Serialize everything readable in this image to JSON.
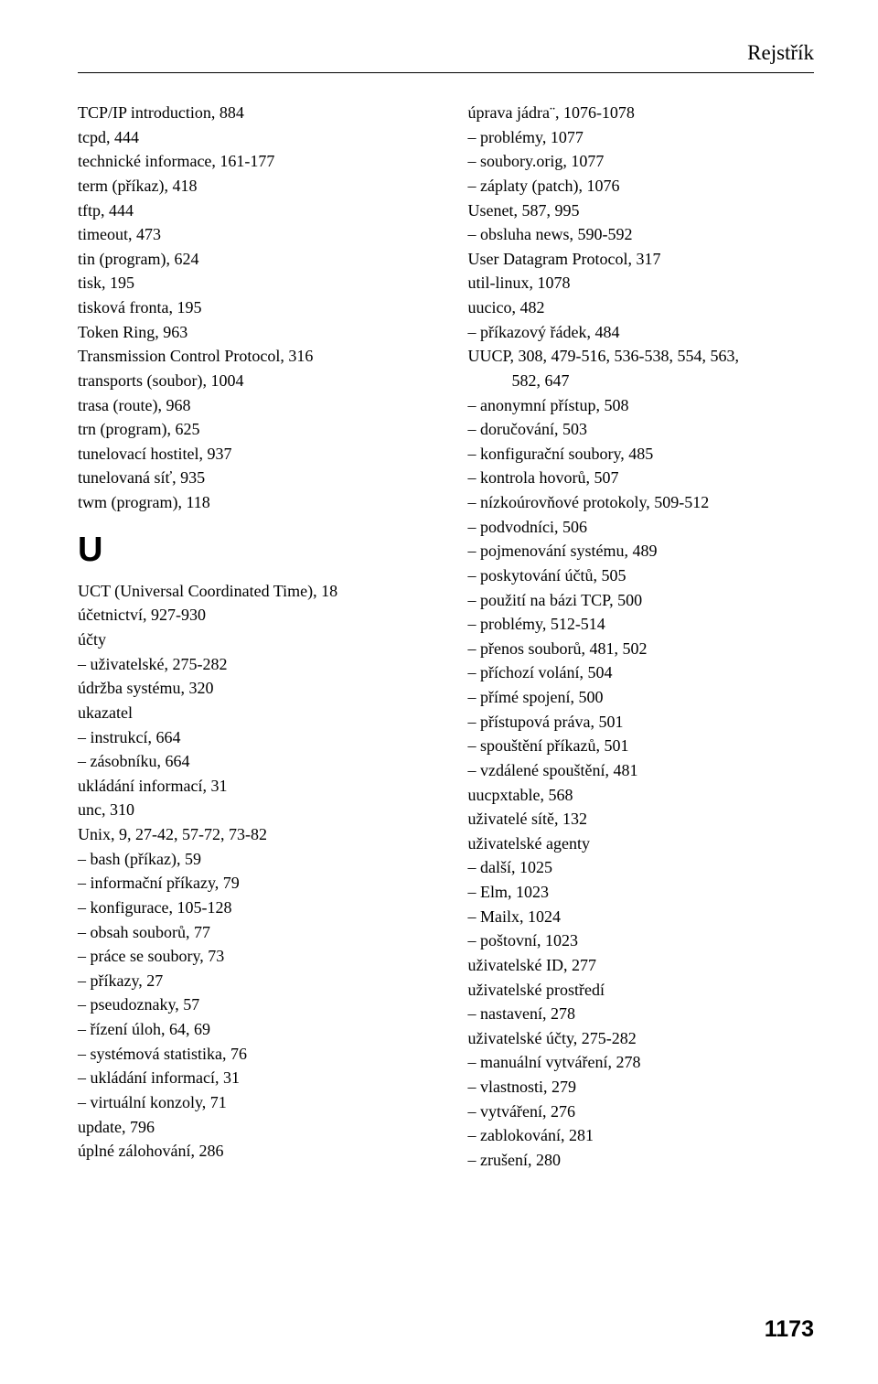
{
  "header": {
    "title": "Rejstřík"
  },
  "left": {
    "entries": [
      {
        "t": "TCP/IP introduction, 884",
        "c": "entry"
      },
      {
        "t": "tcpd, 444",
        "c": "entry"
      },
      {
        "t": "technické informace, 161-177",
        "c": "entry"
      },
      {
        "t": "term (příkaz), 418",
        "c": "entry"
      },
      {
        "t": "tftp, 444",
        "c": "entry"
      },
      {
        "t": "timeout, 473",
        "c": "entry"
      },
      {
        "t": "tin (program), 624",
        "c": "entry"
      },
      {
        "t": "tisk, 195",
        "c": "entry"
      },
      {
        "t": "tisková fronta, 195",
        "c": "entry"
      },
      {
        "t": "Token Ring, 963",
        "c": "entry"
      },
      {
        "t": "Transmission Control Protocol, 316",
        "c": "entry"
      },
      {
        "t": "transports (soubor), 1004",
        "c": "entry"
      },
      {
        "t": "trasa (route), 968",
        "c": "entry"
      },
      {
        "t": "trn (program), 625",
        "c": "entry"
      },
      {
        "t": "tunelovací hostitel, 937",
        "c": "entry"
      },
      {
        "t": "tunelovaná síť, 935",
        "c": "entry"
      },
      {
        "t": "twm (program), 118",
        "c": "entry"
      },
      {
        "t": "U",
        "c": "section-letter"
      },
      {
        "t": "UCT (Universal Coordinated Time), 18",
        "c": "entry"
      },
      {
        "t": "účetnictví, 927-930",
        "c": "entry"
      },
      {
        "t": "účty",
        "c": "entry"
      },
      {
        "t": "– uživatelské, 275-282",
        "c": "sub1"
      },
      {
        "t": "údržba systému, 320",
        "c": "entry"
      },
      {
        "t": "ukazatel",
        "c": "entry"
      },
      {
        "t": "– instrukcí, 664",
        "c": "sub1"
      },
      {
        "t": "– zásobníku, 664",
        "c": "sub1"
      },
      {
        "t": "ukládání informací, 31",
        "c": "entry"
      },
      {
        "t": "unc, 310",
        "c": "entry"
      },
      {
        "t": "Unix, 9, 27-42, 57-72, 73-82",
        "c": "entry"
      },
      {
        "t": "– bash (příkaz), 59",
        "c": "sub1"
      },
      {
        "t": "– informační příkazy, 79",
        "c": "sub1"
      },
      {
        "t": "– konfigurace, 105-128",
        "c": "sub1"
      },
      {
        "t": "– obsah souborů, 77",
        "c": "sub1"
      },
      {
        "t": "– práce se soubory, 73",
        "c": "sub1"
      },
      {
        "t": "– příkazy, 27",
        "c": "sub1"
      },
      {
        "t": "– pseudoznaky, 57",
        "c": "sub1"
      },
      {
        "t": "– řízení úloh, 64, 69",
        "c": "sub1"
      },
      {
        "t": "– systémová statistika, 76",
        "c": "sub1"
      },
      {
        "t": "– ukládání informací, 31",
        "c": "sub1"
      },
      {
        "t": "– virtuální konzoly, 71",
        "c": "sub1"
      },
      {
        "t": "update, 796",
        "c": "entry"
      },
      {
        "t": "úplné zálohování, 286",
        "c": "entry"
      }
    ]
  },
  "right": {
    "entries": [
      {
        "t": "úprava jádra¨, 1076-1078",
        "c": "entry"
      },
      {
        "t": "– problémy, 1077",
        "c": "sub1"
      },
      {
        "t": "– soubory.orig, 1077",
        "c": "sub1"
      },
      {
        "t": "– záplaty (patch), 1076",
        "c": "sub1"
      },
      {
        "t": "Usenet, 587, 995",
        "c": "entry"
      },
      {
        "t": "– obsluha news, 590-592",
        "c": "sub1"
      },
      {
        "t": "User Datagram Protocol, 317",
        "c": "entry"
      },
      {
        "t": "util-linux, 1078",
        "c": "entry"
      },
      {
        "t": "uucico, 482",
        "c": "entry"
      },
      {
        "t": "– příkazový řádek, 484",
        "c": "sub1"
      },
      {
        "t": "UUCP, 308, 479-516, 536-538, 554, 563,",
        "c": "entry"
      },
      {
        "t": "582, 647",
        "c": "sub2"
      },
      {
        "t": "– anonymní přístup, 508",
        "c": "sub1"
      },
      {
        "t": "– doručování, 503",
        "c": "sub1"
      },
      {
        "t": "– konfigurační soubory, 485",
        "c": "sub1"
      },
      {
        "t": "– kontrola hovorů, 507",
        "c": "sub1"
      },
      {
        "t": "– nízkoúrovňové protokoly, 509-512",
        "c": "sub1"
      },
      {
        "t": "– podvodníci, 506",
        "c": "sub1"
      },
      {
        "t": "– pojmenování systému, 489",
        "c": "sub1"
      },
      {
        "t": "– poskytování účtů, 505",
        "c": "sub1"
      },
      {
        "t": "– použití na bázi TCP, 500",
        "c": "sub1"
      },
      {
        "t": "– problémy, 512-514",
        "c": "sub1"
      },
      {
        "t": "– přenos souborů, 481, 502",
        "c": "sub1"
      },
      {
        "t": "– příchozí volání, 504",
        "c": "sub1"
      },
      {
        "t": "– přímé spojení, 500",
        "c": "sub1"
      },
      {
        "t": "– přístupová práva, 501",
        "c": "sub1"
      },
      {
        "t": "– spouštění příkazů, 501",
        "c": "sub1"
      },
      {
        "t": "– vzdálené spouštění, 481",
        "c": "sub1"
      },
      {
        "t": "uucpxtable, 568",
        "c": "entry"
      },
      {
        "t": "uživatelé sítě, 132",
        "c": "entry"
      },
      {
        "t": "uživatelské agenty",
        "c": "entry"
      },
      {
        "t": "– další, 1025",
        "c": "sub1"
      },
      {
        "t": "– Elm, 1023",
        "c": "sub1"
      },
      {
        "t": "– Mailx, 1024",
        "c": "sub1"
      },
      {
        "t": "– poštovní, 1023",
        "c": "sub1"
      },
      {
        "t": "uživatelské ID, 277",
        "c": "entry"
      },
      {
        "t": "uživatelské prostředí",
        "c": "entry"
      },
      {
        "t": "– nastavení, 278",
        "c": "sub1"
      },
      {
        "t": "uživatelské účty, 275-282",
        "c": "entry"
      },
      {
        "t": "– manuální vytváření, 278",
        "c": "sub1"
      },
      {
        "t": "– vlastnosti, 279",
        "c": "sub1"
      },
      {
        "t": "– vytváření, 276",
        "c": "sub1"
      },
      {
        "t": "– zablokování, 281",
        "c": "sub1"
      },
      {
        "t": "– zrušení, 280",
        "c": "sub1"
      }
    ]
  },
  "footer": {
    "page": "1173"
  }
}
